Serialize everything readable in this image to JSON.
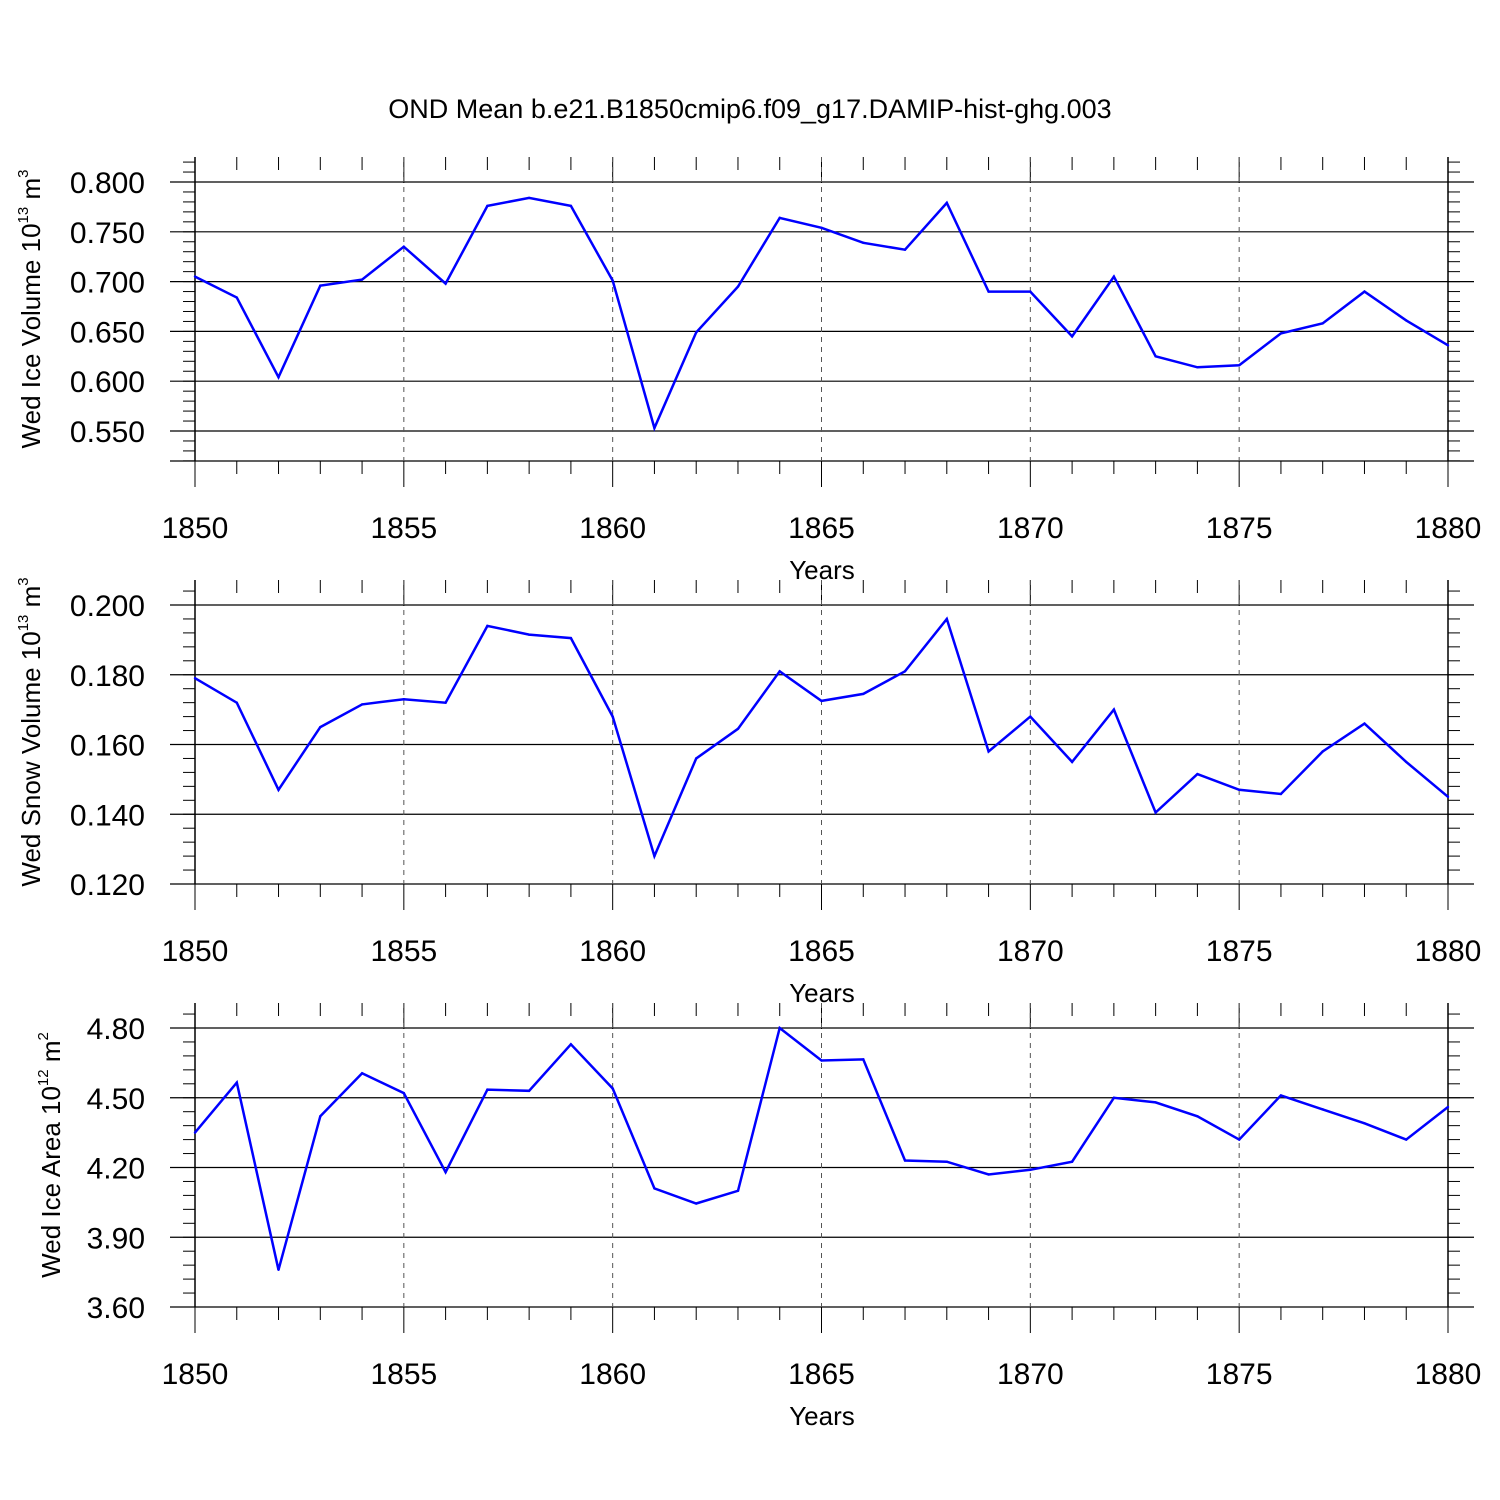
{
  "title": "OND Mean b.e21.B1850cmip6.f09_g17.DAMIP-hist-ghg.003",
  "line_color": "#0000ff",
  "chart_data": [
    {
      "type": "line",
      "name": "ice-volume",
      "title": "",
      "xlabel": "Years",
      "ylabel_main": "Wed Ice Volume 10",
      "ylabel_exp": "13",
      "ylabel_unit": " m",
      "ylabel_unit_exp": "3",
      "xlim": [
        1850,
        1880
      ],
      "ylim": [
        0.52,
        0.8
      ],
      "yticks": [
        0.55,
        0.6,
        0.65,
        0.7,
        0.75,
        0.8
      ],
      "ytick_labels": [
        "0.550",
        "0.600",
        "0.650",
        "0.700",
        "0.750",
        "0.800"
      ],
      "xticks": [
        1850,
        1855,
        1860,
        1865,
        1870,
        1875,
        1880
      ],
      "xtick_labels": [
        "1850",
        "1855",
        "1860",
        "1865",
        "1870",
        "1875",
        "1880"
      ],
      "x": [
        1850,
        1851,
        1852,
        1853,
        1854,
        1855,
        1856,
        1857,
        1858,
        1859,
        1860,
        1861,
        1862,
        1863,
        1864,
        1865,
        1866,
        1867,
        1868,
        1869,
        1870,
        1871,
        1872,
        1873,
        1874,
        1875,
        1876,
        1877,
        1878,
        1879,
        1880
      ],
      "values": [
        0.705,
        0.684,
        0.604,
        0.696,
        0.702,
        0.735,
        0.698,
        0.776,
        0.784,
        0.776,
        0.701,
        0.553,
        0.649,
        0.695,
        0.764,
        0.754,
        0.739,
        0.732,
        0.779,
        0.69,
        0.69,
        0.645,
        0.705,
        0.625,
        0.614,
        0.616,
        0.648,
        0.658,
        0.69,
        0.661,
        0.636
      ]
    },
    {
      "type": "line",
      "name": "snow-volume",
      "title": "",
      "xlabel": "Years",
      "ylabel_main": "Wed Snow Volume 10",
      "ylabel_exp": "13",
      "ylabel_unit": " m",
      "ylabel_unit_exp": "3",
      "xlim": [
        1850,
        1880
      ],
      "ylim": [
        0.12,
        0.2
      ],
      "yticks": [
        0.12,
        0.14,
        0.16,
        0.18,
        0.2
      ],
      "ytick_labels": [
        "0.120",
        "0.140",
        "0.160",
        "0.180",
        "0.200"
      ],
      "xticks": [
        1850,
        1855,
        1860,
        1865,
        1870,
        1875,
        1880
      ],
      "xtick_labels": [
        "1850",
        "1855",
        "1860",
        "1865",
        "1870",
        "1875",
        "1880"
      ],
      "x": [
        1850,
        1851,
        1852,
        1853,
        1854,
        1855,
        1856,
        1857,
        1858,
        1859,
        1860,
        1861,
        1862,
        1863,
        1864,
        1865,
        1866,
        1867,
        1868,
        1869,
        1870,
        1871,
        1872,
        1873,
        1874,
        1875,
        1876,
        1877,
        1878,
        1879,
        1880
      ],
      "values": [
        0.179,
        0.172,
        0.147,
        0.165,
        0.1715,
        0.173,
        0.172,
        0.194,
        0.1915,
        0.1905,
        0.168,
        0.128,
        0.156,
        0.1645,
        0.181,
        0.1725,
        0.1745,
        0.181,
        0.196,
        0.158,
        0.168,
        0.155,
        0.17,
        0.1405,
        0.1515,
        0.147,
        0.1458,
        0.158,
        0.166,
        0.155,
        0.145
      ]
    },
    {
      "type": "line",
      "name": "ice-area",
      "title": "",
      "xlabel": "Years",
      "ylabel_main": "Wed Ice Area 10",
      "ylabel_exp": "12",
      "ylabel_unit": " m",
      "ylabel_unit_exp": "2",
      "xlim": [
        1850,
        1880
      ],
      "ylim": [
        3.6,
        4.8
      ],
      "yticks": [
        3.6,
        3.9,
        4.2,
        4.5,
        4.8
      ],
      "ytick_labels": [
        "3.60",
        "3.90",
        "4.20",
        "4.50",
        "4.80"
      ],
      "xticks": [
        1850,
        1855,
        1860,
        1865,
        1870,
        1875,
        1880
      ],
      "xtick_labels": [
        "1850",
        "1855",
        "1860",
        "1865",
        "1870",
        "1875",
        "1880"
      ],
      "x": [
        1850,
        1851,
        1852,
        1853,
        1854,
        1855,
        1856,
        1857,
        1858,
        1859,
        1860,
        1861,
        1862,
        1863,
        1864,
        1865,
        1866,
        1867,
        1868,
        1869,
        1870,
        1871,
        1872,
        1873,
        1874,
        1875,
        1876,
        1877,
        1878,
        1879,
        1880
      ],
      "values": [
        4.35,
        4.565,
        3.76,
        4.42,
        4.605,
        4.52,
        4.18,
        4.535,
        4.53,
        4.73,
        4.54,
        4.11,
        4.045,
        4.1,
        4.8,
        4.66,
        4.665,
        4.23,
        4.225,
        4.17,
        4.19,
        4.225,
        4.5,
        4.48,
        4.42,
        4.32,
        4.51,
        4.45,
        4.39,
        4.32,
        4.46
      ]
    }
  ]
}
